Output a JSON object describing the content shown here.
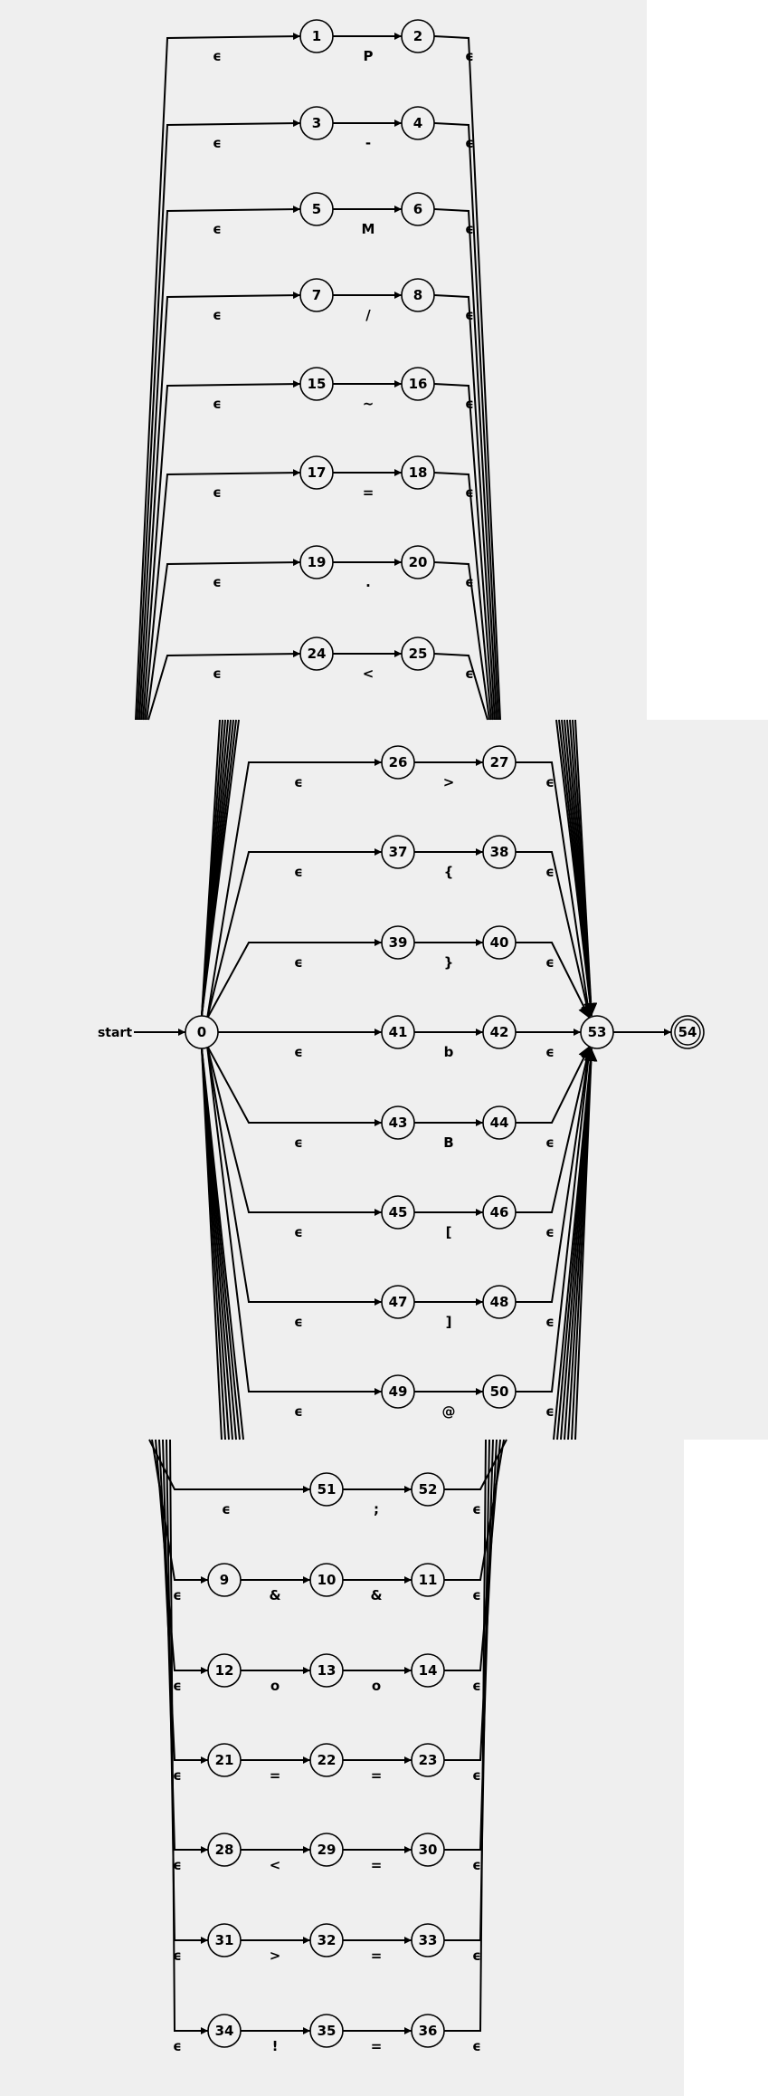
{
  "diagram": {
    "type": "nfa",
    "start_label": "start",
    "epsilon": "ϵ",
    "initial_state": "0",
    "merge_state": "53",
    "accept_state": "54",
    "colors": {
      "background": "#efefef",
      "stroke": "#000000",
      "node_fill": "#f0f0f0"
    },
    "top_panel": [
      {
        "from": "1",
        "to": "2",
        "symbol": "P"
      },
      {
        "from": "3",
        "to": "4",
        "symbol": "-"
      },
      {
        "from": "5",
        "to": "6",
        "symbol": "M"
      },
      {
        "from": "7",
        "to": "8",
        "symbol": "/"
      },
      {
        "from": "15",
        "to": "16",
        "symbol": "~"
      },
      {
        "from": "17",
        "to": "18",
        "symbol": "="
      },
      {
        "from": "19",
        "to": "20",
        "symbol": "."
      },
      {
        "from": "24",
        "to": "25",
        "symbol": "<"
      }
    ],
    "middle_panel": [
      {
        "from": "26",
        "to": "27",
        "symbol": ">"
      },
      {
        "from": "37",
        "to": "38",
        "symbol": "{"
      },
      {
        "from": "39",
        "to": "40",
        "symbol": "}"
      },
      {
        "from": "41",
        "to": "42",
        "symbol": "b"
      },
      {
        "from": "43",
        "to": "44",
        "symbol": "B"
      },
      {
        "from": "45",
        "to": "46",
        "symbol": "["
      },
      {
        "from": "47",
        "to": "48",
        "symbol": "]"
      },
      {
        "from": "49",
        "to": "50",
        "symbol": "@"
      }
    ],
    "bottom_single": [
      {
        "from": "51",
        "to": "52",
        "symbol": ";"
      }
    ],
    "bottom_double": [
      {
        "states": [
          "9",
          "10",
          "11"
        ],
        "symbols": [
          "&",
          "&"
        ]
      },
      {
        "states": [
          "12",
          "13",
          "14"
        ],
        "symbols": [
          "o",
          "o"
        ]
      },
      {
        "states": [
          "21",
          "22",
          "23"
        ],
        "symbols": [
          "=",
          "="
        ]
      },
      {
        "states": [
          "28",
          "29",
          "30"
        ],
        "symbols": [
          "<",
          "="
        ]
      },
      {
        "states": [
          "31",
          "32",
          "33"
        ],
        "symbols": [
          ">",
          "="
        ]
      },
      {
        "states": [
          "34",
          "35",
          "36"
        ],
        "symbols": [
          "!",
          "="
        ]
      }
    ]
  }
}
